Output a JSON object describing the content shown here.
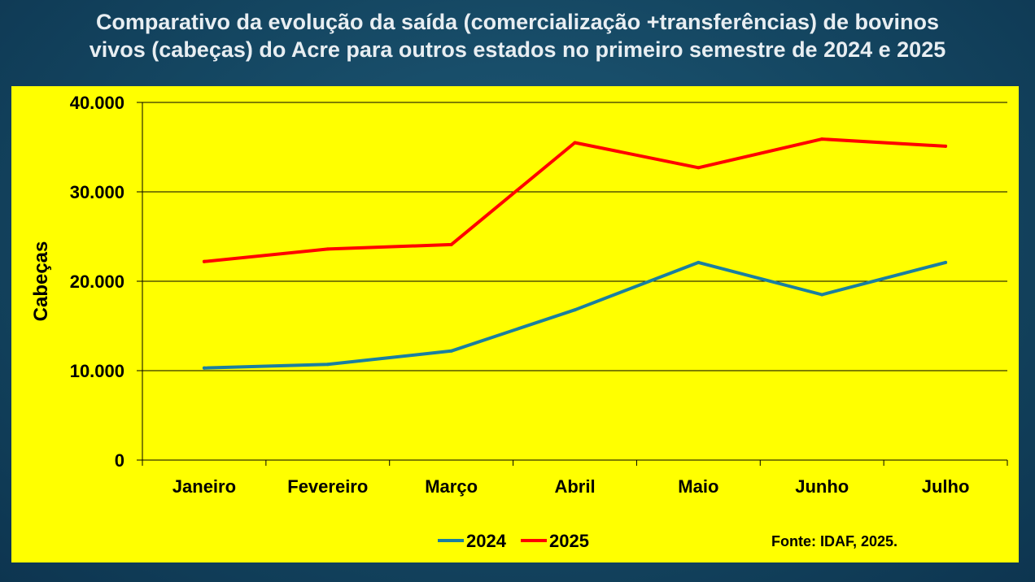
{
  "title_line1": "Comparativo da evolução da saída (comercialização +transferências) de bovinos",
  "title_line2": "vivos (cabeças) do Acre para outros estados no primeiro semestre de 2024 e 2025",
  "source": "Fonte: IDAF, 2025.",
  "colors": {
    "s2024": "#1a7fa0",
    "s2025": "#ff0000",
    "panel": "#ffff00"
  },
  "chart_data": {
    "type": "line",
    "title": "Comparativo da evolução da saída (comercialização +transferências) de bovinos vivos (cabeças) do Acre para outros estados no primeiro semestre de 2024 e 2025",
    "categories": [
      "Janeiro",
      "Fevereiro",
      "Março",
      "Abril",
      "Maio",
      "Junho",
      "Julho"
    ],
    "series": [
      {
        "name": "2024",
        "values": [
          10300,
          10700,
          12200,
          16800,
          22100,
          18500,
          22100
        ]
      },
      {
        "name": "2025",
        "values": [
          22200,
          23600,
          24100,
          35500,
          32700,
          35900,
          35100
        ]
      }
    ],
    "ylabel": "Cabeças",
    "xlabel": "",
    "ylim": [
      0,
      40000
    ],
    "yticks": [
      0,
      10000,
      20000,
      30000,
      40000
    ],
    "ytick_labels": [
      "0",
      "10.000",
      "20.000",
      "30.000",
      "40.000"
    ],
    "grid": true,
    "legend": "bottom-center"
  }
}
